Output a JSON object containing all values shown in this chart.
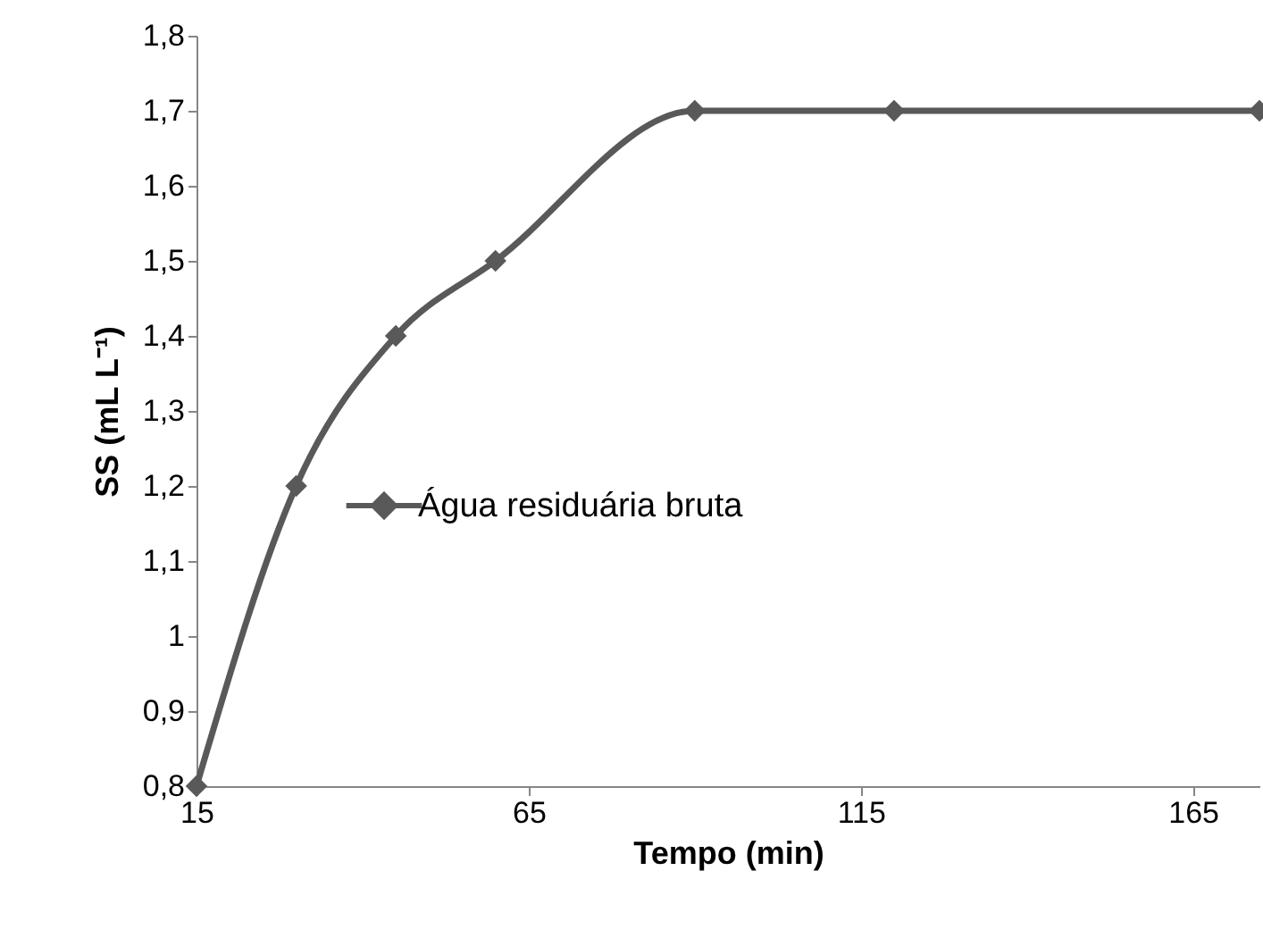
{
  "chart_data": {
    "type": "line",
    "xlabel": "Tempo (min)",
    "ylabel": "SS (mL L⁻¹)",
    "x": [
      15,
      30,
      45,
      60,
      90,
      120,
      175
    ],
    "series": [
      {
        "name": "Água residuária bruta",
        "color": "#595959",
        "values": [
          0.8,
          1.2,
          1.4,
          1.5,
          1.7,
          1.7,
          1.7
        ]
      }
    ],
    "xlim": [
      15,
      175
    ],
    "xticks": [
      15,
      65,
      115,
      165
    ],
    "ylim": [
      0.8,
      1.8
    ],
    "yticks": [
      {
        "value": 0.8,
        "label": "0,8"
      },
      {
        "value": 0.9,
        "label": "0,9"
      },
      {
        "value": 1,
        "label": "1"
      },
      {
        "value": 1.1,
        "label": "1,1"
      },
      {
        "value": 1.2,
        "label": "1,2"
      },
      {
        "value": 1.3,
        "label": "1,3"
      },
      {
        "value": 1.4,
        "label": "1,4"
      },
      {
        "value": 1.5,
        "label": "1,5"
      },
      {
        "value": 1.6,
        "label": "1,6"
      },
      {
        "value": 1.7,
        "label": "1,7"
      },
      {
        "value": 1.8,
        "label": "1,8"
      }
    ],
    "legend": "left",
    "marker": "diamond",
    "grid": false,
    "line_style": "solid"
  }
}
